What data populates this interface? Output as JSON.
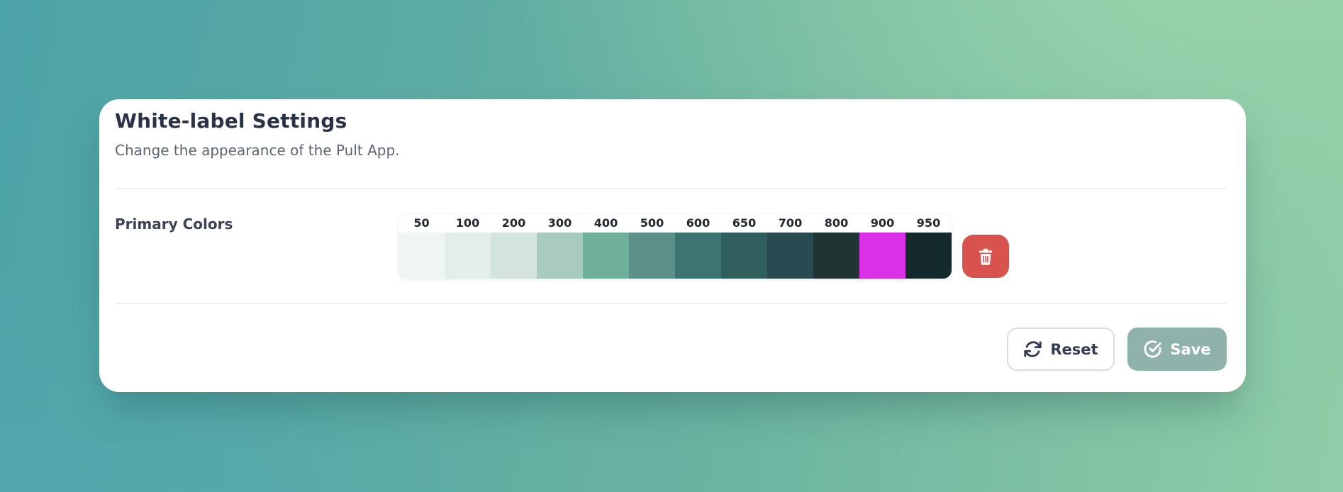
{
  "header": {
    "title": "White-label Settings",
    "subtitle": "Change the appearance of the Pult App."
  },
  "primary_colors": {
    "label": "Primary Colors",
    "swatches": [
      {
        "shade": "50",
        "color": "#eff5f2"
      },
      {
        "shade": "100",
        "color": "#e3eee9"
      },
      {
        "shade": "200",
        "color": "#d2e4dd"
      },
      {
        "shade": "300",
        "color": "#a8cabf"
      },
      {
        "shade": "400",
        "color": "#6fb09c"
      },
      {
        "shade": "500",
        "color": "#5e908a"
      },
      {
        "shade": "600",
        "color": "#3d7471"
      },
      {
        "shade": "650",
        "color": "#315f5e"
      },
      {
        "shade": "700",
        "color": "#294a50"
      },
      {
        "shade": "800",
        "color": "#203434"
      },
      {
        "shade": "900",
        "color": "#da31e8"
      },
      {
        "shade": "950",
        "color": "#152a2b"
      }
    ]
  },
  "actions": {
    "reset_label": "Reset",
    "save_label": "Save"
  },
  "colors": {
    "delete_button": "#d9534e",
    "save_button": "#8fb2ab",
    "title_text": "#2a3247",
    "subtitle_text": "#5b6472",
    "background_start": "#4ba2a7",
    "background_mid": "#6ab3a1",
    "background_end": "#90cda7"
  }
}
